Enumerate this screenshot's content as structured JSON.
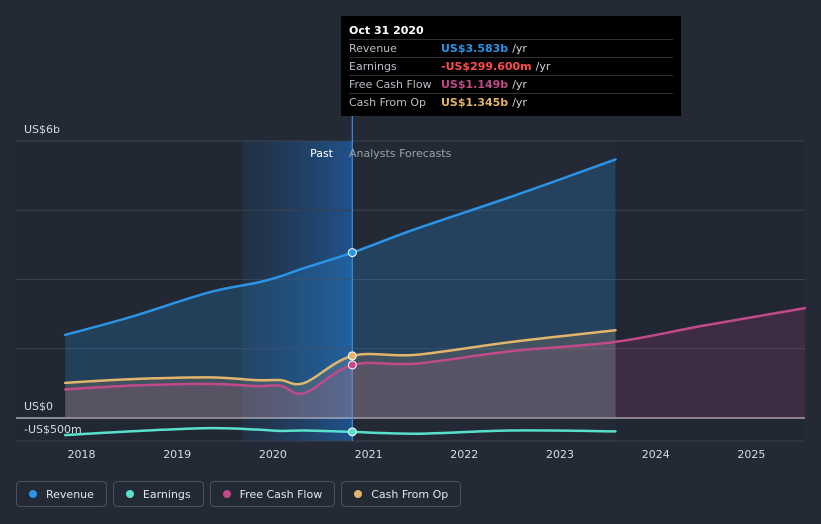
{
  "colors": {
    "background": "#232a36",
    "revenue": "#2b94e6",
    "earnings": "#58e0cc",
    "free_cash_flow": "#c24a8a",
    "cash_from_op": "#e2b56c",
    "earnings_value": "#ff4d4d"
  },
  "chart_data": {
    "type": "line",
    "title": "",
    "ylabel": "",
    "xlabel": "",
    "ylim": [
      -500,
      6000
    ],
    "xlim": [
      2017.65,
      2025.56
    ],
    "y_tick_labels": {
      "top": "US$6b",
      "zero": "US$0",
      "bottom": "-US$500m"
    },
    "x_ticks": [
      2018,
      2019,
      2020,
      2021,
      2022,
      2023,
      2024,
      2025
    ],
    "divider_x": 2020.83,
    "region_labels": {
      "past": "Past",
      "forecast": "Analysts Forecasts"
    },
    "series": [
      {
        "name": "Revenue",
        "color": "#2b94e6",
        "points": [
          [
            2017.83,
            1800
          ],
          [
            2018.5,
            2180
          ],
          [
            2019.33,
            2720
          ],
          [
            2019.83,
            2930
          ],
          [
            2020.08,
            3070
          ],
          [
            2020.33,
            3250
          ],
          [
            2020.83,
            3583
          ],
          [
            2021.5,
            4100
          ],
          [
            2022.5,
            4800
          ],
          [
            2023.58,
            5600
          ]
        ]
      },
      {
        "name": "Earnings",
        "color": "#58e0cc",
        "points": [
          [
            2017.83,
            -370
          ],
          [
            2018.5,
            -290
          ],
          [
            2019.33,
            -220
          ],
          [
            2019.83,
            -250
          ],
          [
            2020.08,
            -280
          ],
          [
            2020.33,
            -270
          ],
          [
            2020.83,
            -300
          ],
          [
            2021.5,
            -340
          ],
          [
            2022.5,
            -270
          ],
          [
            2023.58,
            -290
          ]
        ]
      },
      {
        "name": "Free Cash Flow",
        "color": "#c24a8a",
        "points": [
          [
            2017.83,
            620
          ],
          [
            2018.5,
            700
          ],
          [
            2019.33,
            740
          ],
          [
            2019.83,
            690
          ],
          [
            2020.08,
            700
          ],
          [
            2020.33,
            540
          ],
          [
            2020.83,
            1149
          ],
          [
            2021.5,
            1180
          ],
          [
            2022.5,
            1450
          ],
          [
            2023.58,
            1650
          ],
          [
            2024.5,
            2000
          ],
          [
            2025.56,
            2380
          ]
        ]
      },
      {
        "name": "Cash From Op",
        "color": "#e2b56c",
        "points": [
          [
            2017.83,
            760
          ],
          [
            2018.5,
            840
          ],
          [
            2019.33,
            880
          ],
          [
            2019.83,
            820
          ],
          [
            2020.08,
            820
          ],
          [
            2020.33,
            760
          ],
          [
            2020.83,
            1345
          ],
          [
            2021.5,
            1370
          ],
          [
            2022.5,
            1650
          ],
          [
            2023.58,
            1900
          ]
        ]
      }
    ],
    "markers": [
      {
        "series": "Revenue",
        "x": 2020.83,
        "y": 3583
      },
      {
        "series": "Earnings",
        "x": 2020.83,
        "y": -300
      },
      {
        "series": "Free Cash Flow",
        "x": 2020.83,
        "y": 1149
      },
      {
        "series": "Cash From Op",
        "x": 2020.83,
        "y": 1345
      }
    ]
  },
  "tooltip": {
    "date": "Oct 31 2020",
    "rows": [
      {
        "label": "Revenue",
        "value": "US$3.583b",
        "unit": "/yr",
        "color": "#2b94e6"
      },
      {
        "label": "Earnings",
        "value": "-US$299.600m",
        "unit": "/yr",
        "color": "#ff4d4d"
      },
      {
        "label": "Free Cash Flow",
        "value": "US$1.149b",
        "unit": "/yr",
        "color": "#c24a8a"
      },
      {
        "label": "Cash From Op",
        "value": "US$1.345b",
        "unit": "/yr",
        "color": "#e2b56c"
      }
    ]
  },
  "legend": {
    "items": [
      {
        "label": "Revenue",
        "color": "#2b94e6"
      },
      {
        "label": "Earnings",
        "color": "#58e0cc"
      },
      {
        "label": "Free Cash Flow",
        "color": "#c24a8a"
      },
      {
        "label": "Cash From Op",
        "color": "#e2b56c"
      }
    ]
  }
}
